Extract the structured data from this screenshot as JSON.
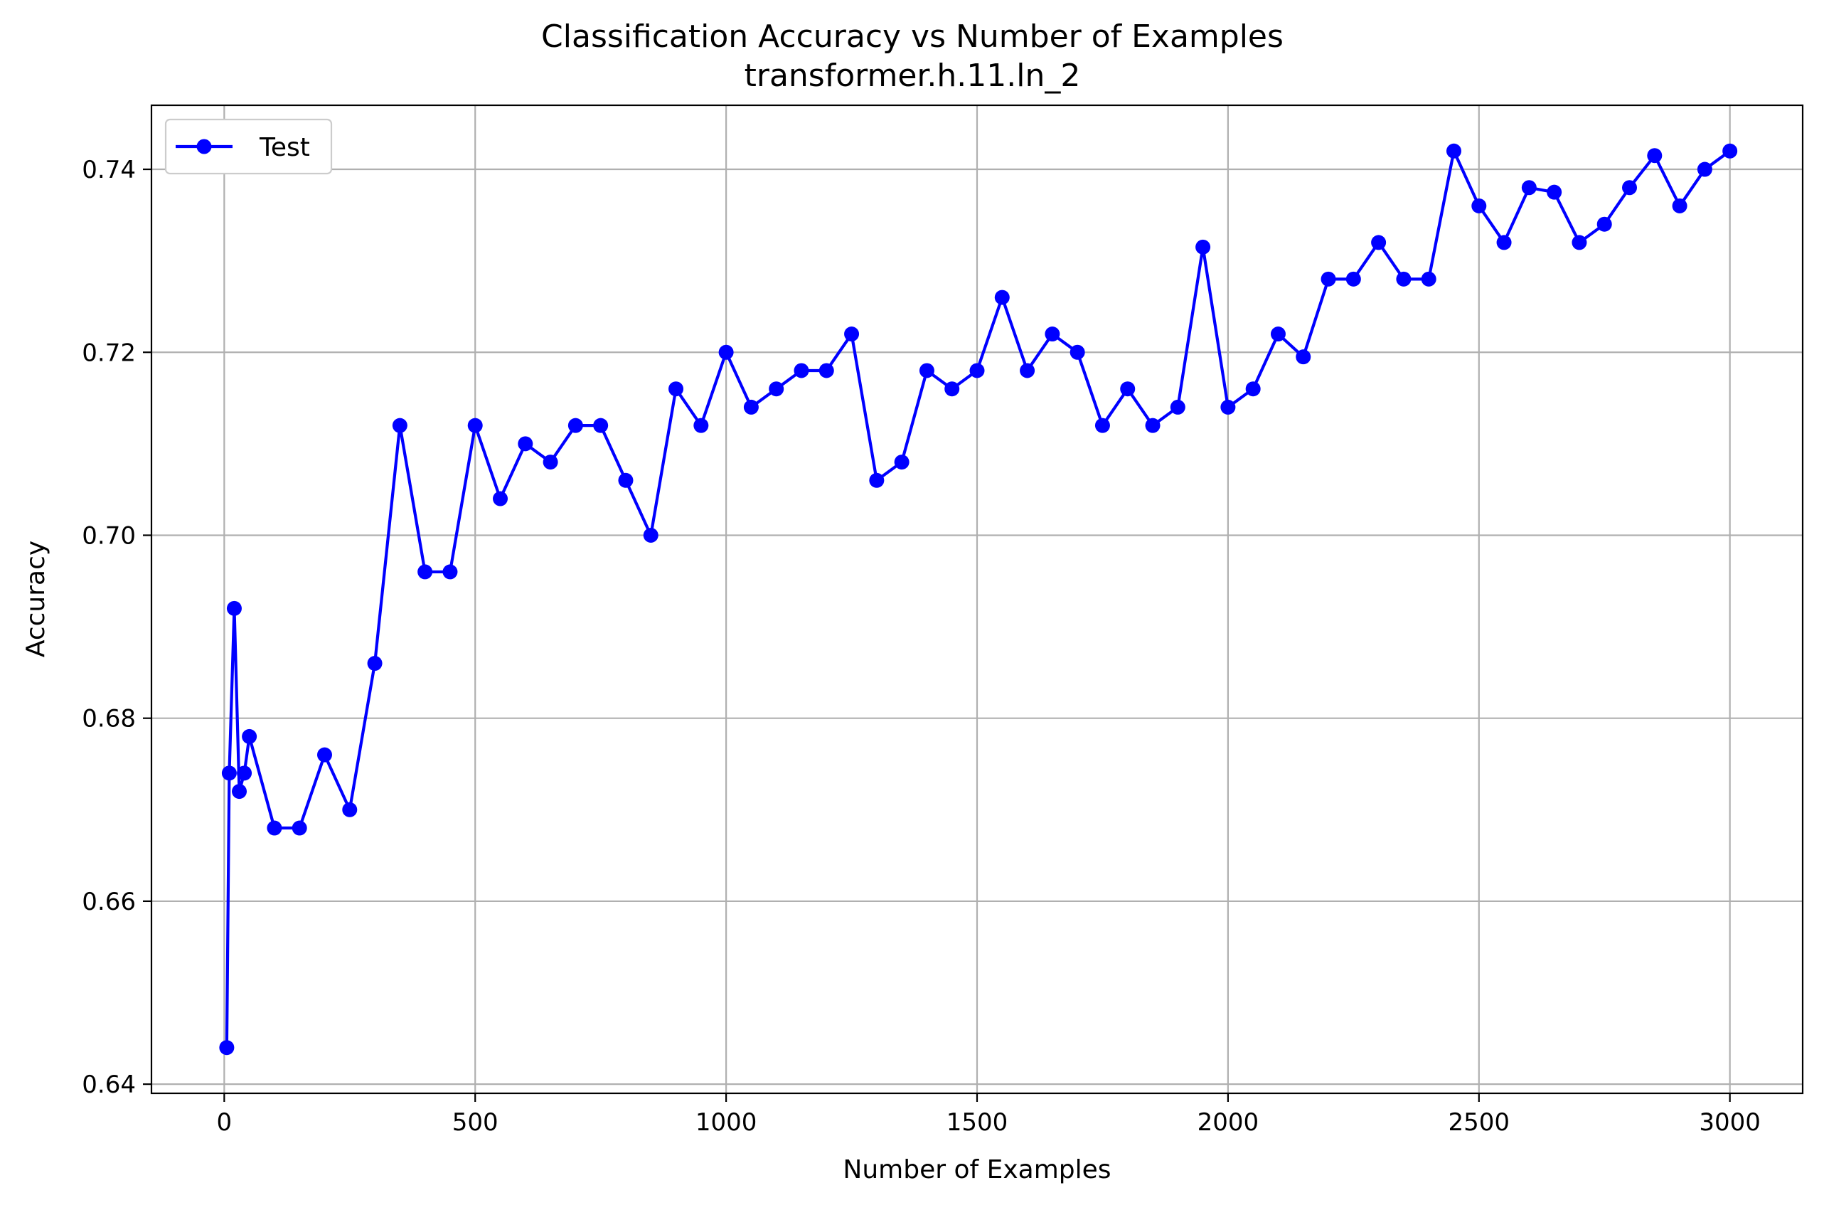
{
  "chart_data": {
    "type": "line",
    "title": "Classification Accuracy vs Number of Examples",
    "subtitle": "transformer.h.11.ln_2",
    "xlabel": "Number of Examples",
    "ylabel": "Accuracy",
    "xlim": [
      -145,
      3145
    ],
    "ylim": [
      0.639,
      0.747
    ],
    "xticks": [
      0,
      500,
      1000,
      1500,
      2000,
      2500,
      3000
    ],
    "xtick_labels": [
      "0",
      "500",
      "1000",
      "1500",
      "2000",
      "2500",
      "3000"
    ],
    "yticks": [
      0.64,
      0.66,
      0.68,
      0.7,
      0.72,
      0.74
    ],
    "ytick_labels": [
      "0.64",
      "0.66",
      "0.68",
      "0.70",
      "0.72",
      "0.74"
    ],
    "grid": true,
    "legend": {
      "position": "top-left",
      "entries": [
        "Test"
      ]
    },
    "series": [
      {
        "name": "Test",
        "color": "#0000ff",
        "marker": "circle",
        "x": [
          5,
          10,
          20,
          30,
          40,
          50,
          100,
          150,
          200,
          250,
          300,
          350,
          400,
          450,
          500,
          550,
          600,
          650,
          700,
          750,
          800,
          850,
          900,
          950,
          1000,
          1050,
          1100,
          1150,
          1200,
          1250,
          1300,
          1350,
          1400,
          1450,
          1500,
          1550,
          1600,
          1650,
          1700,
          1750,
          1800,
          1850,
          1900,
          1950,
          2000,
          2050,
          2100,
          2150,
          2200,
          2250,
          2300,
          2350,
          2400,
          2450,
          2500,
          2550,
          2600,
          2650,
          2700,
          2750,
          2800,
          2850,
          2900,
          2950,
          3000
        ],
        "y": [
          0.644,
          0.674,
          0.692,
          0.672,
          0.674,
          0.678,
          0.668,
          0.668,
          0.676,
          0.67,
          0.686,
          0.712,
          0.696,
          0.696,
          0.712,
          0.704,
          0.71,
          0.708,
          0.712,
          0.712,
          0.706,
          0.7,
          0.716,
          0.712,
          0.72,
          0.714,
          0.716,
          0.718,
          0.718,
          0.722,
          0.706,
          0.708,
          0.718,
          0.716,
          0.718,
          0.726,
          0.718,
          0.722,
          0.72,
          0.712,
          0.716,
          0.712,
          0.714,
          0.7315,
          0.714,
          0.716,
          0.722,
          0.7195,
          0.728,
          0.728,
          0.732,
          0.728,
          0.728,
          0.742,
          0.736,
          0.732,
          0.738,
          0.7375,
          0.732,
          0.734,
          0.738,
          0.7415,
          0.736,
          0.74,
          0.742
        ]
      }
    ]
  }
}
